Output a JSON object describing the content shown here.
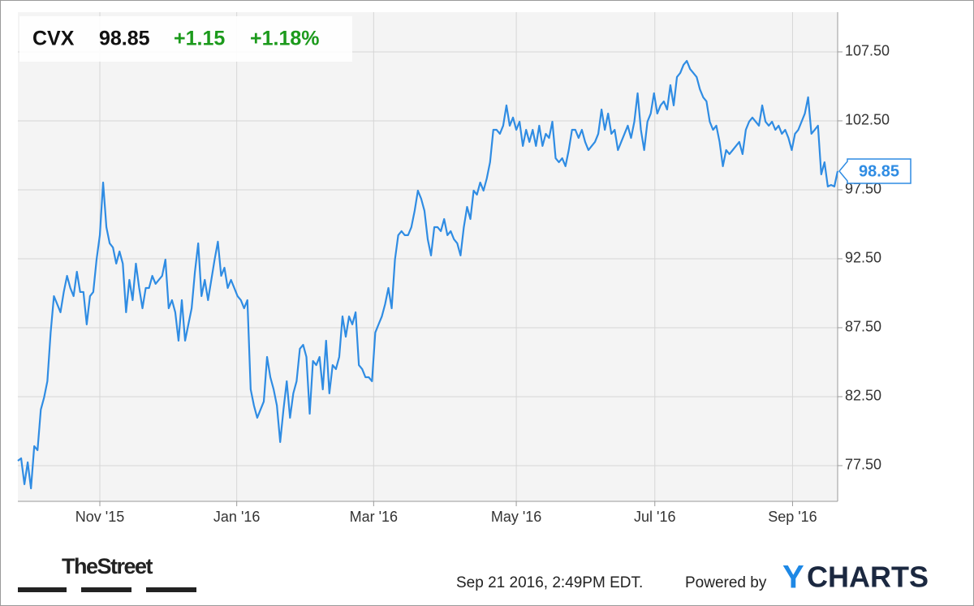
{
  "chart_data": {
    "type": "line",
    "ticker": "CVX",
    "change": "+1.15",
    "change_pct": "+1.18%",
    "color": "#2f8ce3",
    "grid": true,
    "values": [
      77.85,
      78.03,
      76.15,
      77.74,
      75.85,
      78.91,
      78.62,
      81.56,
      82.44,
      83.62,
      87.15,
      89.79,
      89.21,
      88.62,
      90.09,
      91.26,
      90.38,
      89.79,
      91.56,
      90.09,
      90.09,
      87.74,
      89.79,
      90.09,
      92.44,
      94.21,
      98.03,
      94.79,
      93.62,
      93.32,
      92.15,
      93.03,
      92.15,
      88.62,
      90.97,
      89.5,
      92.15,
      90.38,
      88.91,
      90.38,
      90.38,
      91.26,
      90.68,
      90.97,
      91.26,
      92.44,
      88.91,
      89.5,
      88.62,
      86.56,
      89.5,
      86.56,
      87.74,
      88.91,
      91.56,
      93.62,
      89.79,
      90.97,
      89.5,
      90.97,
      92.44,
      93.74,
      91.26,
      91.85,
      90.38,
      90.97,
      90.38,
      89.79,
      89.5,
      88.91,
      89.5,
      83.03,
      81.85,
      80.97,
      81.56,
      82.15,
      85.38,
      83.91,
      83.03,
      81.85,
      79.21,
      81.56,
      83.62,
      80.97,
      82.74,
      83.62,
      85.97,
      86.26,
      85.38,
      81.26,
      85.09,
      84.79,
      85.38,
      83.03,
      86.56,
      82.74,
      84.79,
      84.5,
      85.38,
      88.32,
      86.85,
      88.32,
      87.74,
      88.62,
      84.79,
      84.5,
      83.91,
      83.91,
      83.62,
      87.15,
      87.74,
      88.32,
      89.21,
      90.38,
      88.91,
      92.44,
      94.21,
      94.5,
      94.21,
      94.21,
      94.79,
      95.97,
      97.44,
      96.85,
      95.97,
      93.91,
      92.74,
      94.79,
      94.79,
      94.5,
      95.38,
      94.21,
      94.5,
      93.91,
      93.62,
      92.74,
      94.79,
      96.26,
      95.38,
      97.44,
      97.15,
      98.03,
      97.44,
      98.32,
      99.5,
      101.85,
      101.85,
      101.56,
      102.15,
      103.62,
      102.15,
      102.74,
      101.85,
      102.44,
      100.68,
      101.85,
      100.97,
      101.85,
      100.68,
      102.15,
      100.68,
      101.56,
      101.26,
      102.44,
      99.79,
      99.5,
      99.79,
      99.21,
      100.38,
      101.85,
      101.85,
      101.26,
      101.85,
      100.97,
      100.38,
      100.68,
      100.97,
      101.56,
      103.32,
      101.85,
      103.03,
      101.56,
      101.85,
      100.38,
      100.97,
      101.56,
      102.15,
      101.26,
      102.44,
      104.5,
      101.85,
      100.38,
      102.44,
      103.03,
      104.5,
      103.03,
      103.62,
      103.91,
      103.32,
      105.09,
      103.62,
      105.68,
      105.97,
      106.56,
      106.85,
      106.26,
      105.97,
      105.68,
      104.79,
      104.21,
      103.91,
      102.44,
      101.85,
      102.15,
      100.97,
      99.21,
      100.38,
      100.09,
      100.38,
      100.68,
      100.97,
      100.09,
      101.85,
      102.44,
      102.74,
      102.44,
      102.15,
      103.62,
      102.44,
      102.15,
      102.44,
      101.85,
      102.15,
      101.56,
      101.85,
      101.26,
      100.38,
      101.56,
      101.85,
      102.44,
      103.03,
      104.21,
      101.56,
      101.85,
      102.15,
      98.62,
      99.5,
      97.74,
      97.85,
      97.74,
      98.85
    ],
    "xlim": [
      0,
      250
    ],
    "xticks": [
      {
        "value": 25,
        "label": "Nov '15"
      },
      {
        "value": 66.75,
        "label": "Jan '16"
      },
      {
        "value": 108.5,
        "label": "Mar '16"
      },
      {
        "value": 152,
        "label": "May '16"
      },
      {
        "value": 194.25,
        "label": "Jul '16"
      },
      {
        "value": 236.25,
        "label": "Sep '16"
      }
    ],
    "ylim": [
      74.91,
      110.38
    ],
    "yticks": [
      {
        "value": 77.5,
        "label": "77.50"
      },
      {
        "value": 82.5,
        "label": "82.50"
      },
      {
        "value": 87.5,
        "label": "87.50"
      },
      {
        "value": 92.5,
        "label": "92.50"
      },
      {
        "value": 97.5,
        "label": "97.50"
      },
      {
        "value": 102.5,
        "label": "102.50"
      },
      {
        "value": 107.5,
        "label": "107.50"
      }
    ]
  },
  "footer": {
    "source": "TheStreet",
    "timestamp": "Sep 21 2016, 2:49PM EDT.",
    "powered_by": "Powered by",
    "brand_y": "Y",
    "brand_rest": "CHARTS"
  }
}
